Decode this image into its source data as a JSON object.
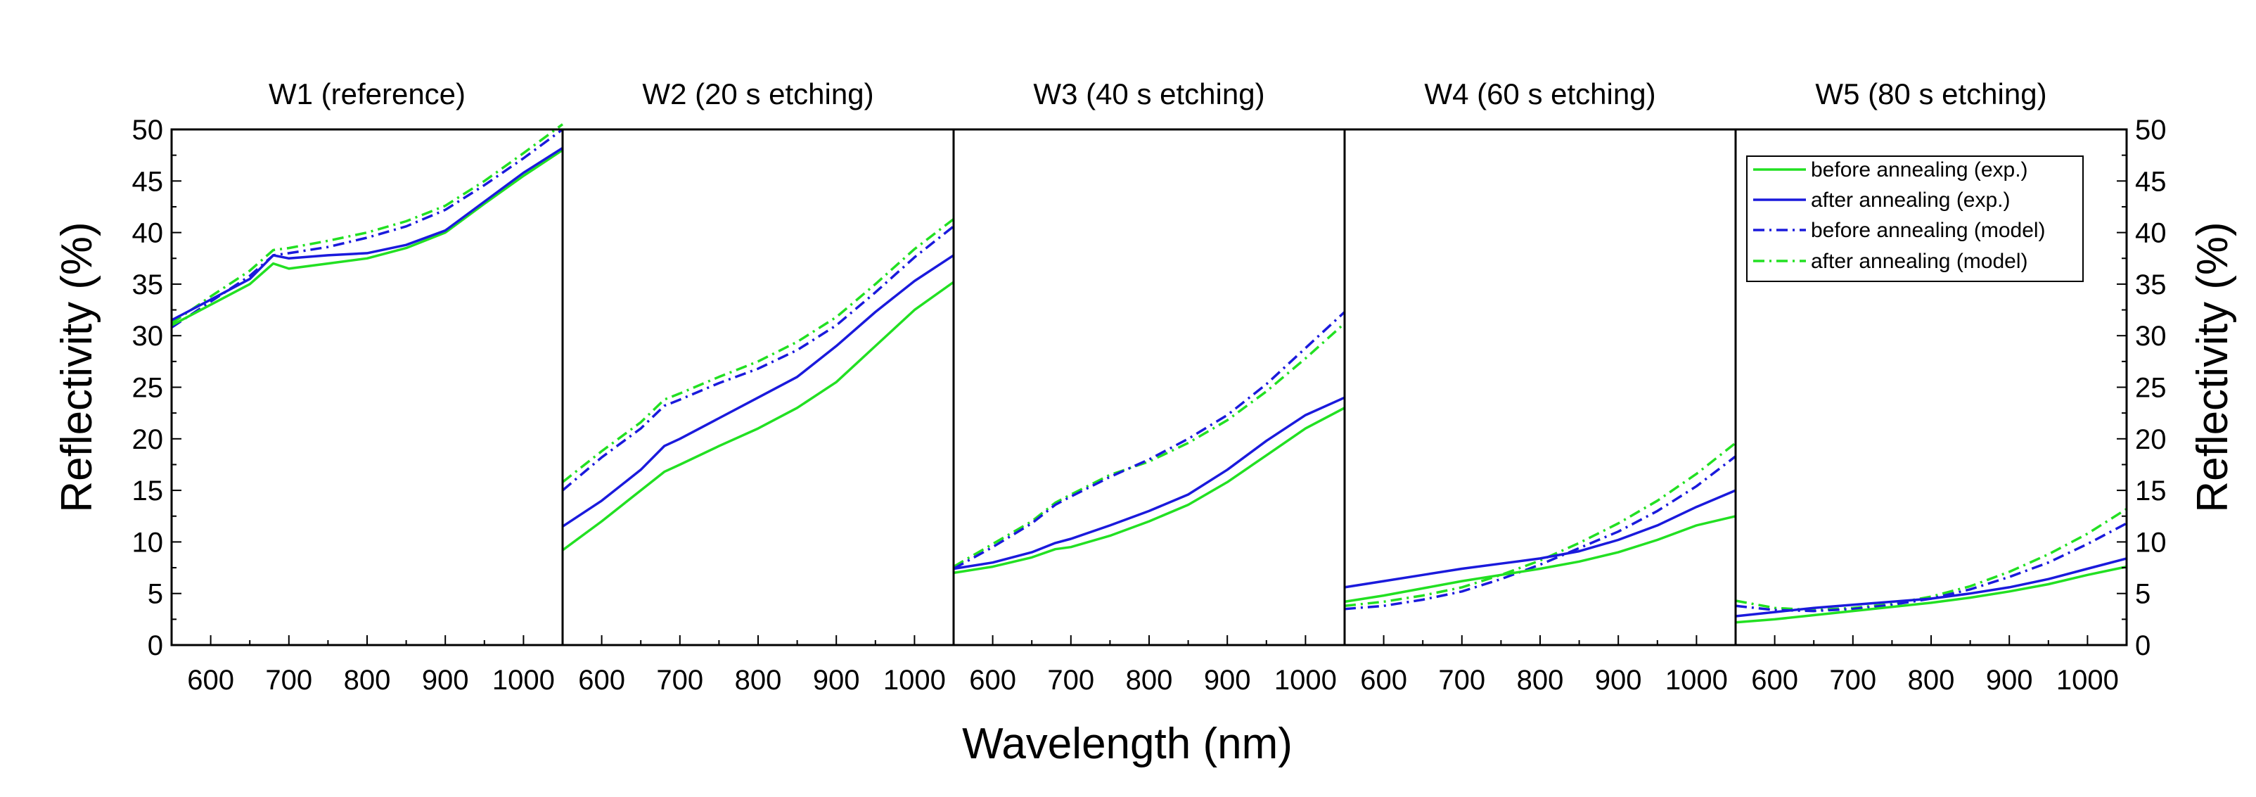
{
  "chart_data": {
    "type": "line",
    "xlabel": "Wavelength (nm)",
    "ylabel": "Reflectivity (%)",
    "xlim": [
      550,
      1050
    ],
    "ylim": [
      0,
      50
    ],
    "x_ticks": [
      600,
      700,
      800,
      900,
      1000
    ],
    "y_ticks": [
      0,
      5,
      10,
      15,
      20,
      25,
      30,
      35,
      40,
      45,
      50
    ],
    "legend": {
      "placement": "top-right of last panel",
      "entries": [
        {
          "label": "before annealing (exp.)",
          "color": "#22e022",
          "style": "solid"
        },
        {
          "label": "after annealing (exp.)",
          "color": "#1a1adc",
          "style": "solid"
        },
        {
          "label": "before annealing (model)",
          "color": "#1a1adc",
          "style": "dashdot"
        },
        {
          "label": "after annealing (model)",
          "color": "#22e022",
          "style": "dashdot"
        }
      ]
    },
    "panels": [
      {
        "title": "W1 (reference)",
        "x": [
          550,
          600,
          650,
          680,
          700,
          750,
          800,
          850,
          900,
          950,
          1000,
          1050
        ],
        "series": [
          {
            "name": "before annealing (exp.)",
            "values": [
              31.0,
              33.0,
              35.0,
              37.0,
              36.5,
              37.0,
              37.5,
              38.5,
              40.0,
              42.8,
              45.5,
              48.0
            ]
          },
          {
            "name": "after annealing (exp.)",
            "values": [
              31.5,
              33.5,
              35.5,
              37.8,
              37.5,
              37.8,
              38.0,
              38.8,
              40.2,
              43.0,
              45.8,
              48.2
            ]
          },
          {
            "name": "before annealing (model)",
            "values": [
              30.8,
              33.3,
              35.8,
              37.8,
              38.0,
              38.6,
              39.5,
              40.6,
              42.2,
              44.6,
              47.2,
              50.0
            ]
          },
          {
            "name": "after annealing (model)",
            "values": [
              31.2,
              33.8,
              36.3,
              38.3,
              38.5,
              39.2,
              40.0,
              41.1,
              42.6,
              45.0,
              47.7,
              50.5
            ]
          }
        ]
      },
      {
        "title": "W2 (20 s etching)",
        "x": [
          550,
          600,
          650,
          680,
          700,
          750,
          800,
          850,
          900,
          950,
          1000,
          1050
        ],
        "series": [
          {
            "name": "before annealing (exp.)",
            "values": [
              9.2,
              12.0,
              15.0,
              16.8,
              17.5,
              19.3,
              21.0,
              23.0,
              25.5,
              29.0,
              32.5,
              35.2
            ]
          },
          {
            "name": "after annealing (exp.)",
            "values": [
              11.5,
              14.0,
              17.0,
              19.3,
              20.0,
              22.0,
              24.0,
              26.0,
              29.0,
              32.3,
              35.3,
              37.8
            ]
          },
          {
            "name": "before annealing (model)",
            "values": [
              15.0,
              18.2,
              21.0,
              23.2,
              23.8,
              25.4,
              26.8,
              28.6,
              31.0,
              34.2,
              37.6,
              40.6
            ]
          },
          {
            "name": "after annealing (model)",
            "values": [
              15.8,
              18.8,
              21.6,
              23.8,
              24.4,
              26.0,
              27.5,
              29.4,
              31.8,
              35.0,
              38.4,
              41.3
            ]
          }
        ]
      },
      {
        "title": "W3 (40 s etching)",
        "x": [
          550,
          600,
          650,
          680,
          700,
          750,
          800,
          850,
          900,
          950,
          1000,
          1050
        ],
        "series": [
          {
            "name": "before annealing (exp.)",
            "values": [
              7.0,
              7.6,
              8.5,
              9.3,
              9.5,
              10.6,
              12.0,
              13.6,
              15.8,
              18.4,
              21.0,
              23.0
            ]
          },
          {
            "name": "after annealing (exp.)",
            "values": [
              7.4,
              8.0,
              9.0,
              9.9,
              10.3,
              11.6,
              13.0,
              14.6,
              17.0,
              19.8,
              22.3,
              24.0
            ]
          },
          {
            "name": "before annealing (model)",
            "values": [
              7.4,
              9.5,
              11.8,
              13.6,
              14.4,
              16.3,
              18.0,
              20.0,
              22.3,
              25.3,
              28.8,
              32.3
            ]
          },
          {
            "name": "after annealing (model)",
            "values": [
              7.6,
              9.8,
              12.0,
              13.8,
              14.6,
              16.5,
              17.8,
              19.6,
              21.8,
              24.6,
              27.8,
              31.2
            ]
          }
        ]
      },
      {
        "title": "W4 (60 s etching)",
        "x": [
          550,
          600,
          650,
          700,
          750,
          800,
          850,
          900,
          950,
          1000,
          1050
        ],
        "series": [
          {
            "name": "before annealing (exp.)",
            "values": [
              4.2,
              4.8,
              5.5,
              6.2,
              6.8,
              7.4,
              8.1,
              9.0,
              10.2,
              11.6,
              12.5
            ]
          },
          {
            "name": "after annealing (exp.)",
            "values": [
              5.6,
              6.2,
              6.8,
              7.4,
              7.9,
              8.4,
              9.1,
              10.2,
              11.6,
              13.4,
              15.0
            ]
          },
          {
            "name": "before annealing (model)",
            "values": [
              3.5,
              3.8,
              4.4,
              5.2,
              6.4,
              7.8,
              9.4,
              11.0,
              13.0,
              15.4,
              18.3
            ]
          },
          {
            "name": "after annealing (model)",
            "values": [
              3.8,
              4.2,
              4.8,
              5.6,
              6.8,
              8.2,
              9.9,
              11.8,
              14.0,
              16.6,
              19.6
            ]
          }
        ]
      },
      {
        "title": "W5 (80 s etching)",
        "x": [
          550,
          600,
          650,
          700,
          750,
          800,
          850,
          900,
          950,
          1000,
          1050
        ],
        "series": [
          {
            "name": "before annealing (exp.)",
            "values": [
              2.2,
              2.5,
              2.9,
              3.3,
              3.7,
              4.1,
              4.6,
              5.2,
              5.9,
              6.8,
              7.6
            ]
          },
          {
            "name": "after annealing (exp.)",
            "values": [
              2.8,
              3.2,
              3.6,
              3.9,
              4.2,
              4.5,
              5.0,
              5.6,
              6.4,
              7.4,
              8.4
            ]
          },
          {
            "name": "before annealing (model)",
            "values": [
              3.8,
              3.4,
              3.3,
              3.5,
              3.9,
              4.5,
              5.4,
              6.6,
              8.0,
              9.8,
              11.8
            ]
          },
          {
            "name": "after annealing (model)",
            "values": [
              4.3,
              3.6,
              3.4,
              3.6,
              4.0,
              4.7,
              5.7,
              7.1,
              8.8,
              10.8,
              13.2
            ]
          }
        ]
      }
    ]
  }
}
